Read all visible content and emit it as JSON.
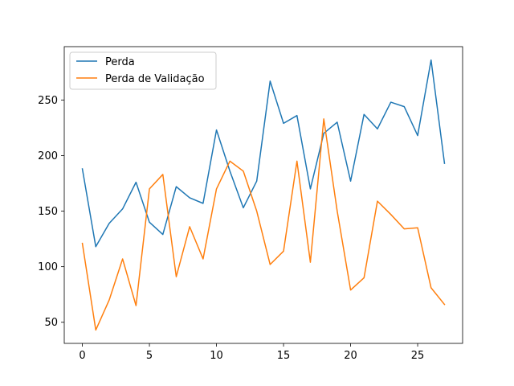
{
  "chart_data": {
    "type": "line",
    "title": "",
    "xlabel": "",
    "ylabel": "",
    "x": [
      0,
      1,
      2,
      3,
      4,
      5,
      6,
      7,
      8,
      9,
      10,
      11,
      12,
      13,
      14,
      15,
      16,
      17,
      18,
      19,
      20,
      21,
      22,
      23,
      24,
      25,
      26,
      27
    ],
    "xlim": [
      -1.35,
      28.35
    ],
    "ylim": [
      31,
      298
    ],
    "xticks": [
      0,
      5,
      10,
      15,
      20,
      25
    ],
    "yticks": [
      50,
      100,
      150,
      200,
      250
    ],
    "grid": false,
    "legend_position": "upper-left",
    "series": [
      {
        "name": "Perda",
        "color": "#1f77b4",
        "values": [
          188,
          118,
          139,
          152,
          176,
          140,
          129,
          172,
          162,
          157,
          223,
          186,
          153,
          177,
          267,
          229,
          236,
          170,
          220,
          230,
          177,
          237,
          224,
          248,
          244,
          218,
          286,
          193
        ]
      },
      {
        "name": "Perda de Validação",
        "color": "#ff7f0e",
        "values": [
          121,
          43,
          70,
          107,
          65,
          170,
          183,
          91,
          136,
          107,
          170,
          195,
          186,
          150,
          102,
          114,
          195,
          104,
          233,
          150,
          79,
          90,
          159,
          147,
          134,
          135,
          81,
          66
        ]
      }
    ]
  }
}
